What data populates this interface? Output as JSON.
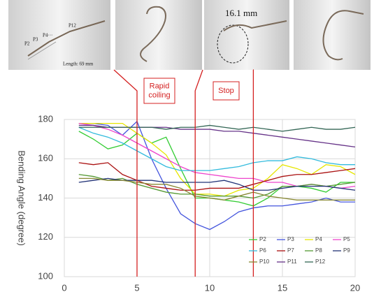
{
  "photos": {
    "labels": [
      "P2",
      "P3",
      "P4···",
      "P12",
      "Length: 69 mm"
    ],
    "diameter": "16.1  mm"
  },
  "chart_data": {
    "type": "line",
    "ylabel": "Bending Angle (degree)",
    "annotations": [
      {
        "lines": [
          "Rapid",
          "coiling"
        ]
      },
      {
        "lines": [
          "Stop"
        ]
      }
    ],
    "markers": [
      5,
      9,
      13
    ],
    "marker_color": "#d42020",
    "x": [
      1,
      2,
      3,
      4,
      5,
      6,
      7,
      8,
      9,
      10,
      11,
      12,
      13,
      14,
      15,
      16,
      17,
      18,
      19,
      20
    ],
    "xlim": [
      0,
      20
    ],
    "xticks": [
      0,
      5,
      10,
      15,
      20
    ],
    "ylim": [
      100,
      180
    ],
    "yticks": [
      100,
      120,
      140,
      160,
      180
    ],
    "grid": true,
    "legend": "lower-right",
    "series": [
      {
        "name": "P2",
        "color": "#33cc33",
        "values": [
          174,
          170,
          165,
          167,
          173,
          168,
          171,
          155,
          140,
          140,
          139,
          138,
          136,
          140,
          146,
          146,
          145,
          143,
          148,
          148
        ]
      },
      {
        "name": "P3",
        "color": "#4455dd",
        "values": [
          178,
          178,
          177,
          172,
          179,
          160,
          145,
          132,
          127,
          124,
          128,
          133,
          135,
          136,
          136,
          137,
          138,
          140,
          138,
          138
        ]
      },
      {
        "name": "P4",
        "color": "#e6e600",
        "values": [
          178,
          178,
          178,
          178,
          173,
          168,
          162,
          150,
          142,
          142,
          141,
          144,
          145,
          150,
          157,
          155,
          152,
          157,
          156,
          152
        ]
      },
      {
        "name": "P5",
        "color": "#ee44cc",
        "values": [
          178,
          177,
          175,
          172,
          168,
          164,
          160,
          156,
          153,
          152,
          151,
          150,
          150,
          148,
          148,
          146,
          147,
          146,
          145,
          146
        ]
      },
      {
        "name": "P6",
        "color": "#33bbdd",
        "values": [
          176,
          173,
          171,
          168,
          164,
          160,
          156,
          154,
          154,
          154,
          155,
          156,
          158,
          159,
          159,
          161,
          160,
          158,
          157,
          157
        ]
      },
      {
        "name": "P7",
        "color": "#aa1111",
        "values": [
          158,
          157,
          158,
          152,
          149,
          146,
          145,
          144,
          144,
          145,
          145,
          145,
          147,
          149,
          151,
          152,
          152,
          153,
          154,
          155
        ]
      },
      {
        "name": "P8",
        "color": "#559933",
        "values": [
          152,
          151,
          149,
          150,
          147,
          145,
          143,
          142,
          142,
          141,
          141,
          141,
          140,
          142,
          146,
          146,
          147,
          146,
          147,
          148
        ]
      },
      {
        "name": "P9",
        "color": "#223377",
        "values": [
          148,
          149,
          150,
          149,
          149,
          149,
          148,
          148,
          148,
          148,
          149,
          147,
          144,
          144,
          145,
          146,
          146,
          146,
          145,
          144
        ]
      },
      {
        "name": "P10",
        "color": "#888833",
        "values": [
          150,
          150,
          149,
          149,
          148,
          147,
          147,
          145,
          141,
          140,
          139,
          141,
          143,
          141,
          140,
          139,
          139,
          139,
          139,
          139
        ]
      },
      {
        "name": "P11",
        "color": "#663388",
        "values": [
          177,
          177,
          176,
          176,
          176,
          176,
          176,
          175,
          175,
          175,
          174,
          174,
          173,
          172,
          171,
          170,
          169,
          168,
          167,
          166
        ]
      },
      {
        "name": "P12",
        "color": "#336655",
        "values": [
          176,
          176,
          176,
          176,
          176,
          176,
          175,
          176,
          176,
          177,
          176,
          175,
          176,
          175,
          174,
          175,
          176,
          175,
          175,
          176
        ]
      }
    ]
  }
}
